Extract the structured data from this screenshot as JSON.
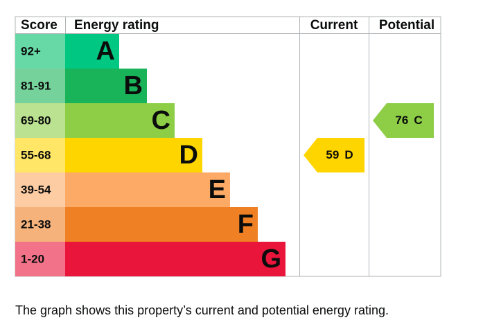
{
  "headers": {
    "score": "Score",
    "rating": "Energy rating",
    "current": "Current",
    "potential": "Potential"
  },
  "bands": [
    {
      "range": "92+",
      "letter": "A",
      "color": "#00c781",
      "score_color": "#66d9a6"
    },
    {
      "range": "81-91",
      "letter": "B",
      "color": "#19b459",
      "score_color": "#75d29b"
    },
    {
      "range": "69-80",
      "letter": "C",
      "color": "#8dce46",
      "score_color": "#bbe290"
    },
    {
      "range": "55-68",
      "letter": "D",
      "color": "#ffd500",
      "score_color": "#ffe666"
    },
    {
      "range": "39-54",
      "letter": "E",
      "color": "#fcaa65",
      "score_color": "#fdcca3"
    },
    {
      "range": "21-38",
      "letter": "F",
      "color": "#ef8023",
      "score_color": "#f5b37b"
    },
    {
      "range": "1-20",
      "letter": "G",
      "color": "#e9153b",
      "score_color": "#f27389"
    }
  ],
  "current": {
    "score": 59,
    "rating": "D"
  },
  "potential": {
    "score": 76,
    "rating": "C"
  },
  "caption": "The graph shows this property’s current and potential energy rating."
}
